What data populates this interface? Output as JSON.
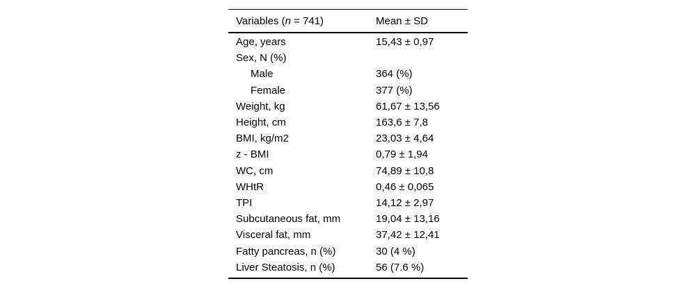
{
  "table": {
    "header": {
      "variables_prefix": "Variables (",
      "variables_n": "n",
      "variables_suffix": " = 741)",
      "mean_sd": "Mean ± SD"
    },
    "rows": [
      {
        "label": "Age, years",
        "value": "15,43 ± 0,97",
        "indent": false
      },
      {
        "label": "Sex, N (%)",
        "value": "",
        "indent": false
      },
      {
        "label": "Male",
        "value": "364 (%)",
        "indent": true
      },
      {
        "label": "Female",
        "value": "377 (%)",
        "indent": true
      },
      {
        "label": "Weight, kg",
        "value": "61,67 ± 13,56",
        "indent": false
      },
      {
        "label": "Height, cm",
        "value": "163,6 ± 7,8",
        "indent": false
      },
      {
        "label": "BMI, kg/m2",
        "value": "23,03 ± 4,64",
        "indent": false
      },
      {
        "label": "z - BMI",
        "value": "0,79 ± 1,94",
        "indent": false
      },
      {
        "label": "WC, cm",
        "value": "74,89 ± 10,8",
        "indent": false
      },
      {
        "label": "WHtR",
        "value": "0,46 ± 0,065",
        "indent": false
      },
      {
        "label": "TPI",
        "value": "14,12 ± 2,97",
        "indent": false
      },
      {
        "label": "Subcutaneous fat, mm",
        "value": "19,04 ± 13,16",
        "indent": false
      },
      {
        "label": "Visceral fat, mm",
        "value": "37,42 ± 12,41",
        "indent": false
      },
      {
        "label": "Fatty pancreas, n (%)",
        "value": "30 (4 %)",
        "indent": false
      },
      {
        "label": "Liver Steatosis, n (%)",
        "value": "56 (7.6 %)",
        "indent": false
      }
    ]
  }
}
